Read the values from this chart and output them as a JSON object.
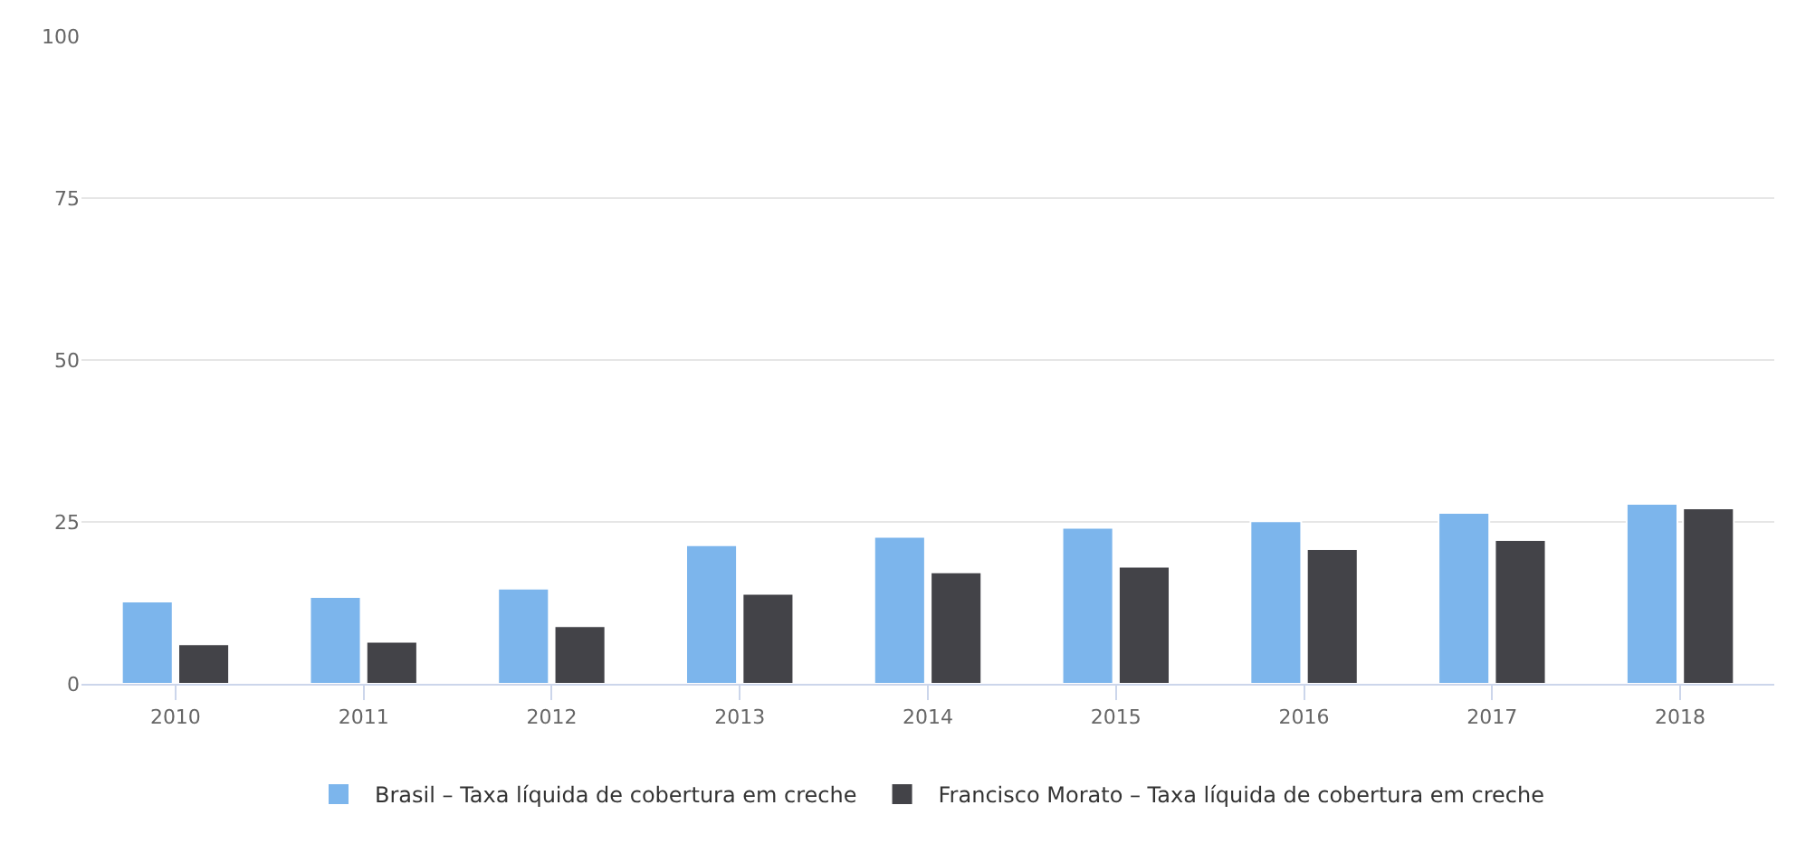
{
  "chart_data": {
    "type": "bar",
    "categories": [
      "2010",
      "2011",
      "2012",
      "2013",
      "2014",
      "2015",
      "2016",
      "2017",
      "2018"
    ],
    "series": [
      {
        "name": "Brasil – Taxa líquida de cobertura em creche",
        "color": "#7cb5ec",
        "values": [
          12.7,
          13.4,
          14.7,
          21.4,
          22.7,
          24.1,
          25.1,
          26.4,
          27.8
        ]
      },
      {
        "name": "Francisco Morato – Taxa líquida de cobertura em creche",
        "color": "#434348",
        "values": [
          6.1,
          6.5,
          8.9,
          13.9,
          17.2,
          18.1,
          20.8,
          22.2,
          27.1
        ]
      }
    ],
    "ylim": [
      0,
      100
    ],
    "yticks": [
      0,
      25,
      50,
      75,
      100
    ],
    "grid": "y",
    "legend": "bottom"
  }
}
